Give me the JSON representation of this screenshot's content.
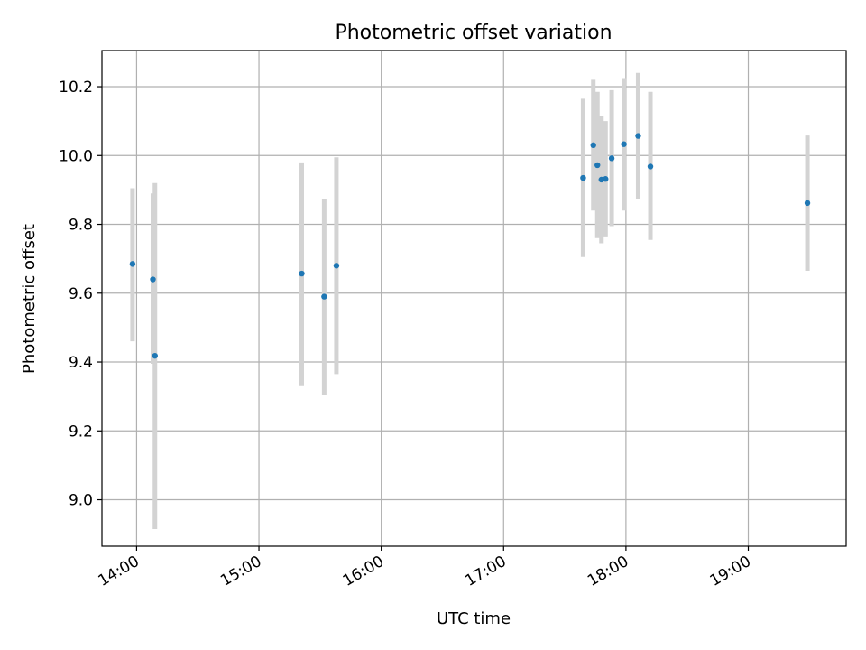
{
  "chart_data": {
    "type": "scatter",
    "title": "Photometric offset variation",
    "xlabel": "UTC time",
    "ylabel": "Photometric offset",
    "x_scale": "time",
    "xlim": [
      "13:43",
      "19:48"
    ],
    "ylim": [
      8.865,
      10.305
    ],
    "x_ticks": [
      "14:00",
      "15:00",
      "16:00",
      "17:00",
      "18:00",
      "19:00"
    ],
    "y_ticks": [
      9.0,
      9.2,
      9.4,
      9.6,
      9.8,
      10.0,
      10.2
    ],
    "grid": true,
    "legend": "none",
    "colors": {
      "point": "#1f77b4",
      "errorbar": "#d3d3d3",
      "grid": "#b0b0b0"
    },
    "points": [
      {
        "x": "13:58",
        "y": 9.685,
        "yerr_low": 9.46,
        "yerr_high": 9.905
      },
      {
        "x": "14:08",
        "y": 9.64,
        "yerr_low": 9.395,
        "yerr_high": 9.89
      },
      {
        "x": "14:09",
        "y": 9.418,
        "yerr_low": 8.915,
        "yerr_high": 9.92
      },
      {
        "x": "15:21",
        "y": 9.657,
        "yerr_low": 9.33,
        "yerr_high": 9.98
      },
      {
        "x": "15:32",
        "y": 9.59,
        "yerr_low": 9.305,
        "yerr_high": 9.875
      },
      {
        "x": "15:38",
        "y": 9.68,
        "yerr_low": 9.365,
        "yerr_high": 9.995
      },
      {
        "x": "17:39",
        "y": 9.935,
        "yerr_low": 9.705,
        "yerr_high": 10.165
      },
      {
        "x": "17:44",
        "y": 10.03,
        "yerr_low": 9.84,
        "yerr_high": 10.22
      },
      {
        "x": "17:46",
        "y": 9.972,
        "yerr_low": 9.76,
        "yerr_high": 10.185
      },
      {
        "x": "17:48",
        "y": 9.93,
        "yerr_low": 9.745,
        "yerr_high": 10.115
      },
      {
        "x": "17:50",
        "y": 9.932,
        "yerr_low": 9.765,
        "yerr_high": 10.1
      },
      {
        "x": "17:53",
        "y": 9.992,
        "yerr_low": 9.795,
        "yerr_high": 10.19
      },
      {
        "x": "17:59",
        "y": 10.033,
        "yerr_low": 9.84,
        "yerr_high": 10.225
      },
      {
        "x": "18:06",
        "y": 10.057,
        "yerr_low": 9.875,
        "yerr_high": 10.24
      },
      {
        "x": "18:12",
        "y": 9.968,
        "yerr_low": 9.755,
        "yerr_high": 10.185
      },
      {
        "x": "19:29",
        "y": 9.862,
        "yerr_low": 9.665,
        "yerr_high": 10.058
      }
    ]
  }
}
